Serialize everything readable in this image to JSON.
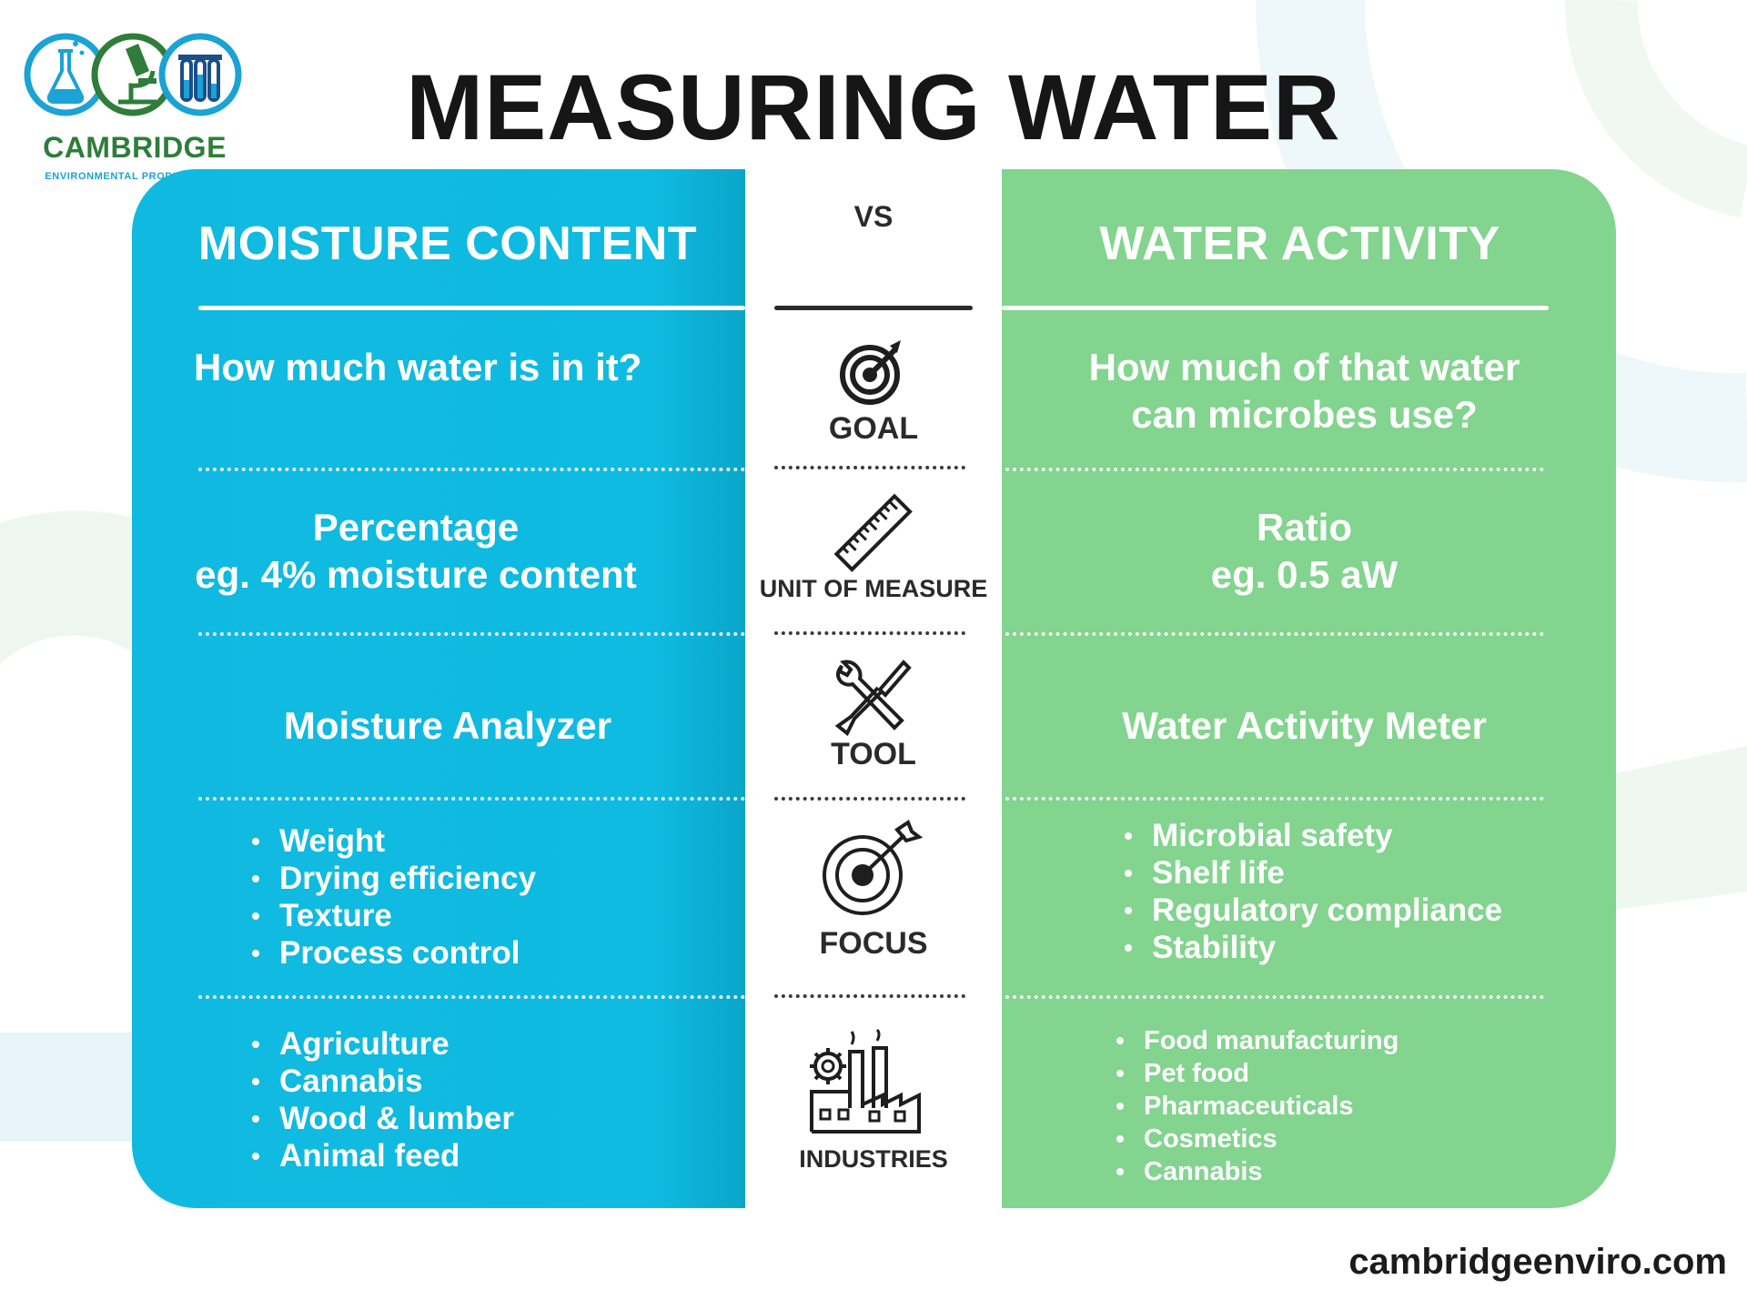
{
  "logo": {
    "name": "CAMBRIDGE",
    "subtitle": "ENVIRONMENTAL PRODUCTS INC"
  },
  "title": "MEASURING WATER",
  "vs_label": "VS",
  "left": {
    "heading": "MOISTURE CONTENT",
    "goal": "How much water is in it?",
    "unit_line1": "Percentage",
    "unit_line2": "eg. 4% moisture content",
    "tool": "Moisture Analyzer",
    "focus": [
      "Weight",
      "Drying efficiency",
      "Texture",
      "Process control"
    ],
    "industries": [
      "Agriculture",
      "Cannabis",
      "Wood & lumber",
      "Animal feed"
    ]
  },
  "right": {
    "heading": "WATER ACTIVITY",
    "goal_line1": "How much of that water",
    "goal_line2": "can microbes use?",
    "unit_line1": "Ratio",
    "unit_line2": "eg. 0.5 aW",
    "tool": "Water Activity Meter",
    "focus": [
      "Microbial safety",
      "Shelf life",
      "Regulatory compliance",
      "Stability"
    ],
    "industries": [
      "Food manufacturing",
      "Pet food",
      "Pharmaceuticals",
      "Cosmetics",
      "Cannabis"
    ]
  },
  "rows": {
    "goal": "GOAL",
    "unit": "UNIT OF MEASURE",
    "tool": "TOOL",
    "focus": "FOCUS",
    "industries": "INDUSTRIES"
  },
  "icons": {
    "goal": "target-arrow-icon",
    "unit": "ruler-icon",
    "tool": "wrench-screwdriver-icon",
    "focus": "bullseye-icon",
    "industries": "factory-icon"
  },
  "colors": {
    "left_panel": "#10b9e0",
    "right_panel": "#82d48e",
    "logo_green": "#2e7d3a",
    "logo_blue": "#1aa3d4"
  },
  "footer": {
    "url": "cambridgeenviro.com"
  }
}
